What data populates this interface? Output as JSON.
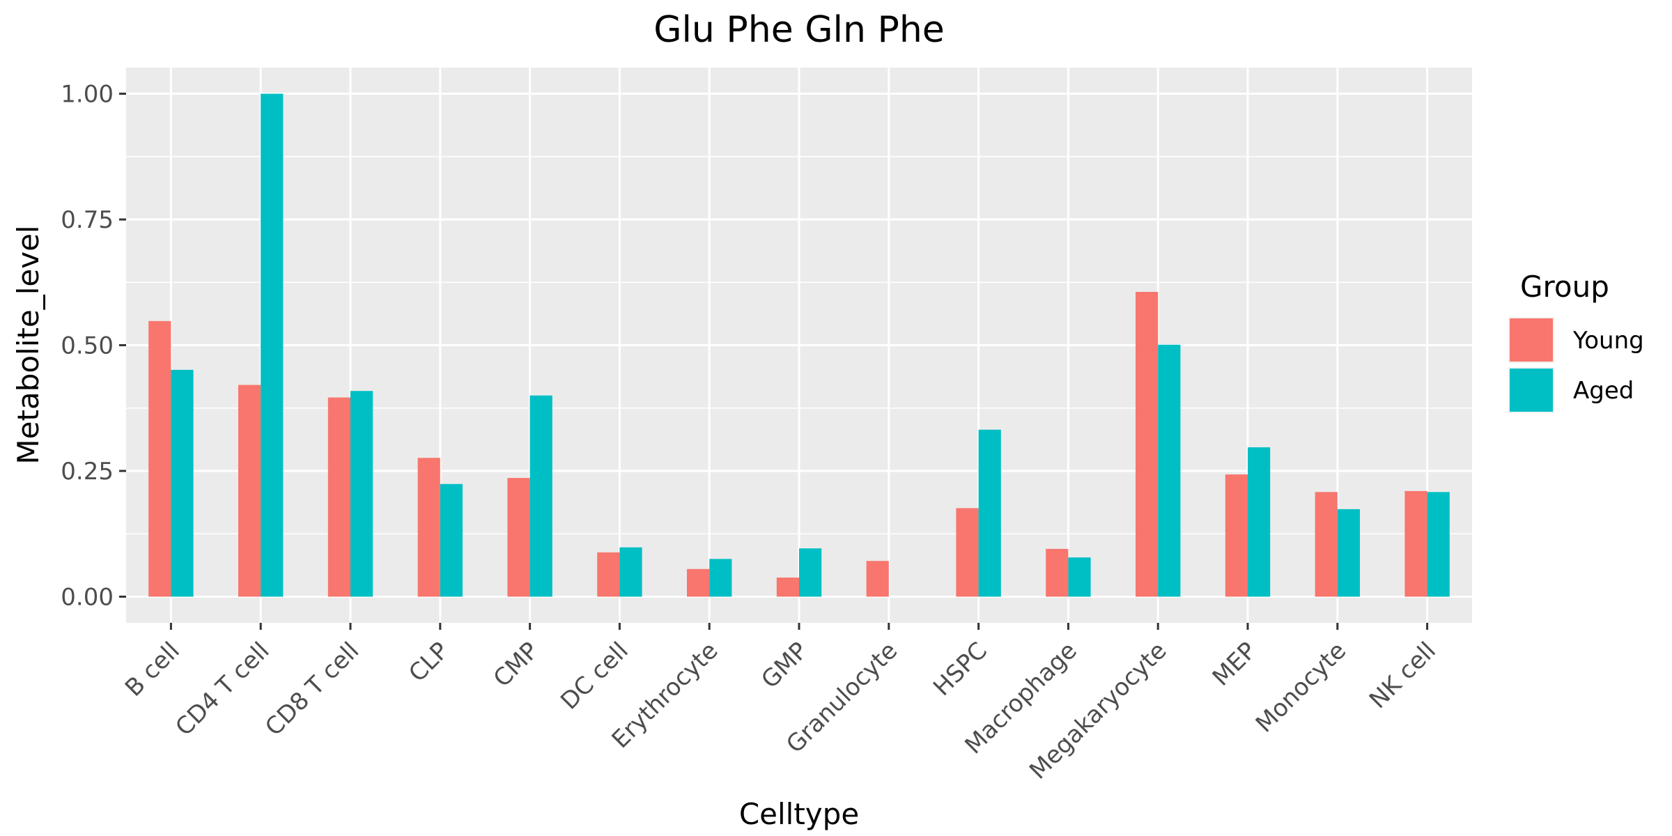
{
  "chart_data": {
    "type": "bar",
    "title": "Glu Phe Gln Phe",
    "xlabel": "Celltype",
    "ylabel": "Metabolite_level",
    "categories": [
      "B cell",
      "CD4 T cell",
      "CD8 T cell",
      "CLP",
      "CMP",
      "DC cell",
      "Erythrocyte",
      "GMP",
      "Granulocyte",
      "HSPC",
      "Macrophage",
      "Megakaryocyte",
      "MEP",
      "Monocyte",
      "NK cell"
    ],
    "series": [
      {
        "name": "Young",
        "color": "#F8766D",
        "values": [
          0.548,
          0.421,
          0.396,
          0.276,
          0.236,
          0.088,
          0.055,
          0.038,
          0.071,
          0.176,
          0.095,
          0.606,
          0.243,
          0.208,
          0.21
        ]
      },
      {
        "name": "Aged",
        "color": "#00BFC4",
        "values": [
          0.451,
          1.0,
          0.409,
          0.224,
          0.4,
          0.098,
          0.075,
          0.096,
          null,
          0.332,
          0.078,
          0.501,
          0.297,
          0.174,
          0.208
        ]
      }
    ],
    "ylim": [
      -0.052,
      1.052
    ],
    "yticks": [
      0.0,
      0.25,
      0.5,
      0.75,
      1.0
    ],
    "ytick_labels": [
      "0.00",
      "0.25",
      "0.50",
      "0.75",
      "1.00"
    ],
    "grid": true,
    "legend": {
      "title": "Group",
      "position": "right"
    },
    "panel_background": "#EBEBEB",
    "gridline_color": "#FFFFFF"
  }
}
